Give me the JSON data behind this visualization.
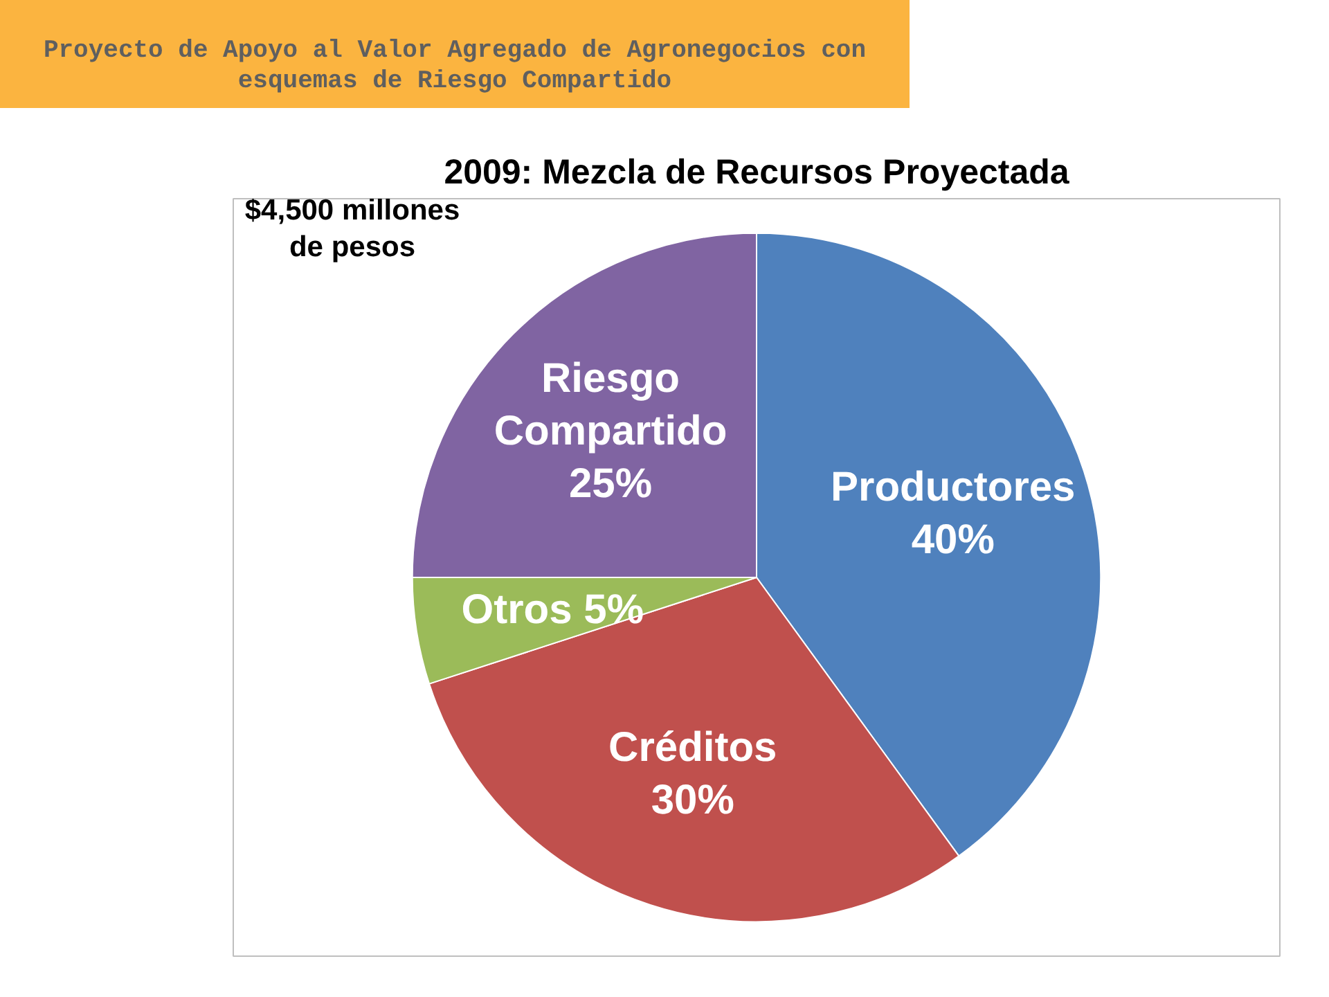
{
  "chart_data": {
    "type": "pie",
    "title": "2009: Mezcla de Recursos Proyectada",
    "annotations": [
      "Proyecto de Apoyo al Valor Agregado de Agronegocios con esquemas de Riesgo Compartido",
      "$4,500 millones de pesos"
    ],
    "categories": [
      "Productores",
      "Créditos",
      "Otros",
      "Riesgo Compartido"
    ],
    "values": [
      40,
      30,
      5,
      25
    ],
    "value_labels": [
      "40%",
      "30%",
      "5%",
      "25%"
    ],
    "colors": [
      "#4f81bd",
      "#c0504d",
      "#9bbb59",
      "#8064a2"
    ]
  }
}
